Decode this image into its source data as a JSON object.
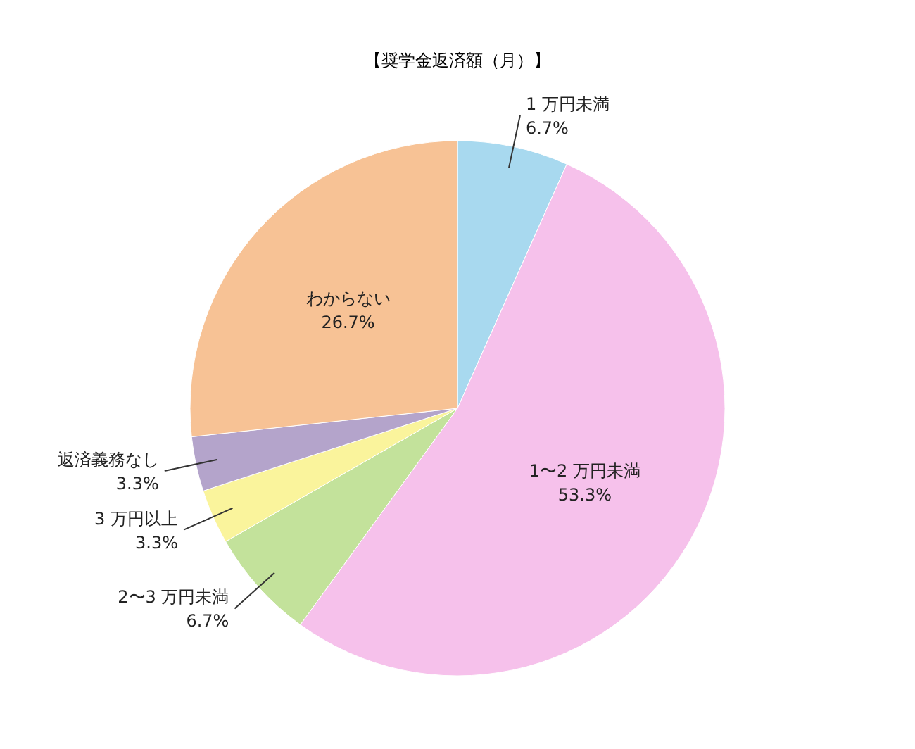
{
  "chart_data": {
    "type": "pie",
    "title": "【奨学金返済額（月）】",
    "categories": [
      "1 万円未満",
      "1〜2 万円未満",
      "2〜3 万円未満",
      "3 万円以上",
      "返済義務なし",
      "わからない"
    ],
    "values": [
      6.7,
      53.3,
      6.7,
      3.3,
      3.3,
      26.7
    ],
    "value_labels": [
      "6.7%",
      "53.3%",
      "6.7%",
      "3.3%",
      "3.3%",
      "26.7%"
    ],
    "colors": [
      "#a8d9ef",
      "#f6c1eb",
      "#c3e29b",
      "#faf49c",
      "#b4a4cb",
      "#f7c295"
    ]
  }
}
